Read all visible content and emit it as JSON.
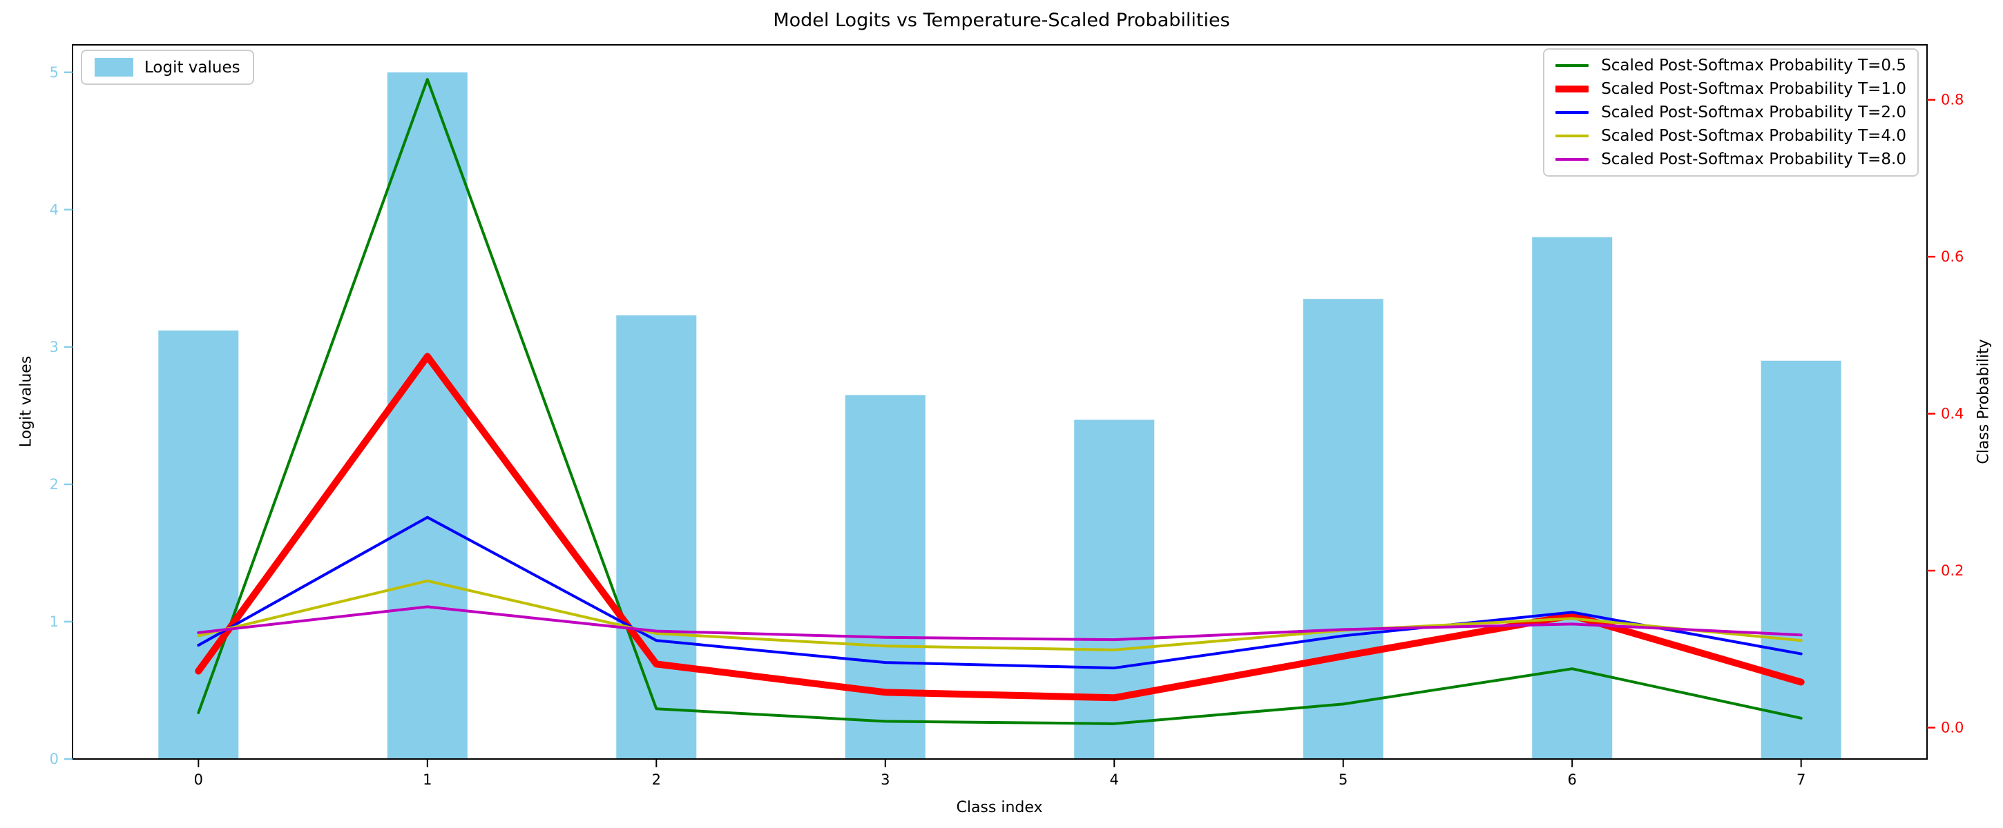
{
  "title": "Model Logits vs Temperature-Scaled Probabilities",
  "chart_data": {
    "type": "bar+line",
    "title": "Model Logits vs Temperature-Scaled Probabilities",
    "xlabel": "Class index",
    "categories": [
      0,
      1,
      2,
      3,
      4,
      5,
      6,
      7
    ],
    "bars": {
      "name": "Logit values",
      "legend_label": "Logit values",
      "color": "#87CEEB",
      "axis": "left",
      "bar_width_units": 0.35,
      "values": [
        3.12,
        5.0,
        3.23,
        2.65,
        2.47,
        3.35,
        3.8,
        2.9
      ]
    },
    "series": [
      {
        "name": "Scaled Post-Softmax Probability T=0.5",
        "color": "#008000",
        "linewidth": 4,
        "values": [
          0.019,
          0.826,
          0.024,
          0.008,
          0.005,
          0.03,
          0.075,
          0.012
        ]
      },
      {
        "name": "Scaled Post-Softmax Probability T=1.0",
        "color": "#FF0000",
        "linewidth": 10,
        "values": [
          0.072,
          0.473,
          0.081,
          0.045,
          0.038,
          0.091,
          0.143,
          0.058
        ]
      },
      {
        "name": "Scaled Post-Softmax Probability T=2.0",
        "color": "#0000FF",
        "linewidth": 4,
        "values": [
          0.105,
          0.268,
          0.111,
          0.083,
          0.076,
          0.117,
          0.147,
          0.094
        ]
      },
      {
        "name": "Scaled Post-Softmax Probability T=4.0",
        "color": "#BFBF00",
        "linewidth": 4,
        "values": [
          0.117,
          0.187,
          0.12,
          0.104,
          0.099,
          0.124,
          0.139,
          0.111
        ]
      },
      {
        "name": "Scaled Post-Softmax Probability T=8.0",
        "color": "#BF00BF",
        "linewidth": 4,
        "values": [
          0.121,
          0.154,
          0.123,
          0.115,
          0.112,
          0.125,
          0.132,
          0.118
        ]
      }
    ],
    "axes": {
      "left": {
        "label": "Logit values",
        "color": "#87CEEB",
        "tick_labels": [
          "0",
          "1",
          "2",
          "3",
          "4",
          "5"
        ],
        "tick_values": [
          0,
          1,
          2,
          3,
          4,
          5
        ],
        "range": [
          0,
          5.2
        ]
      },
      "right": {
        "label": "Class Probability",
        "color": "#FF0000",
        "tick_labels": [
          "0.0",
          "0.2",
          "0.4",
          "0.6",
          "0.8"
        ],
        "tick_values": [
          0,
          0.2,
          0.4,
          0.6,
          0.8
        ],
        "range": [
          -0.04,
          0.87
        ]
      },
      "x": {
        "label": "Class index",
        "color": "#000000",
        "tick_labels": [
          "0",
          "1",
          "2",
          "3",
          "4",
          "5",
          "6",
          "7"
        ],
        "tick_values": [
          0,
          1,
          2,
          3,
          4,
          5,
          6,
          7
        ],
        "range": [
          -0.55,
          7.55
        ]
      }
    },
    "legend_position": {
      "bars": "upper left",
      "lines": "upper right"
    },
    "grid": false,
    "spine_color": "#000000",
    "background": "#FFFFFF"
  }
}
